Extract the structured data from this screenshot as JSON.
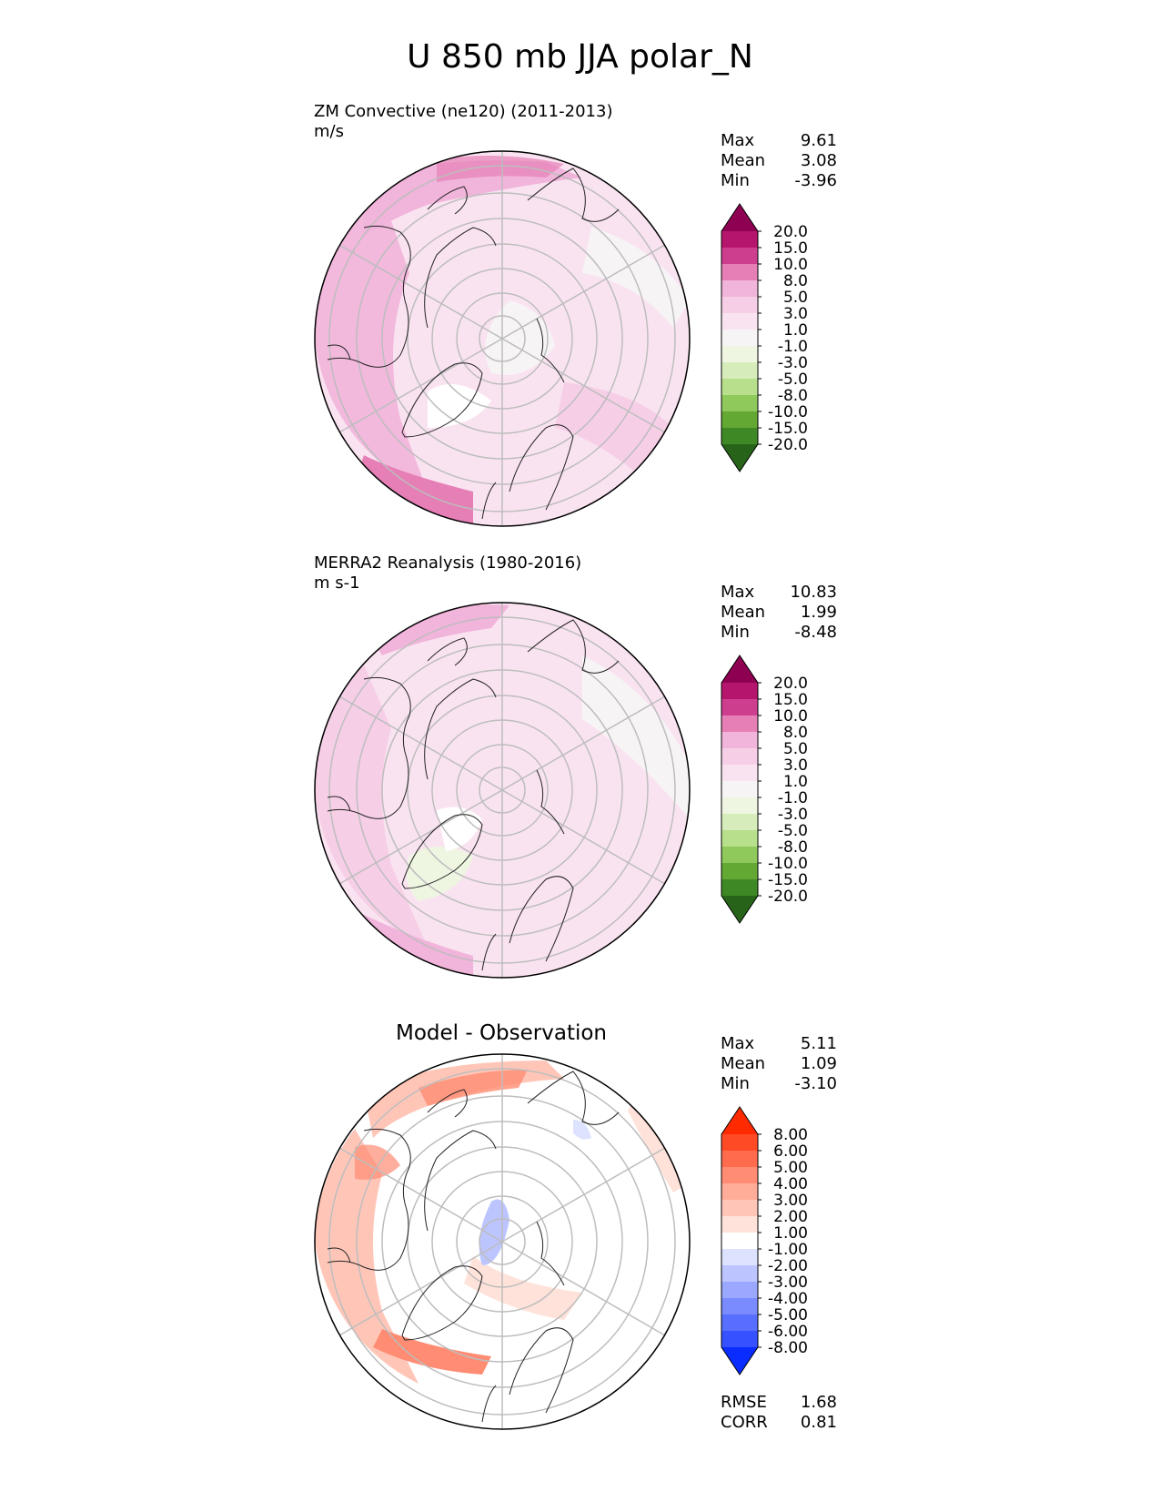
{
  "title": "U 850 mb JJA polar_N",
  "panels": [
    {
      "id": "test",
      "title": "ZM Convective (ne120) (2011-2013)",
      "units": "m/s",
      "stats": [
        {
          "label": "Max",
          "value": "9.61"
        },
        {
          "label": "Mean",
          "value": "3.08"
        },
        {
          "label": "Min",
          "value": "-3.96"
        }
      ],
      "colorbar": {
        "ticks": [
          "20.0",
          "15.0",
          "10.0",
          "8.0",
          "5.0",
          "3.0",
          "1.0",
          "-1.0",
          "-3.0",
          "-5.0",
          "-8.0",
          "-10.0",
          "-15.0",
          "-20.0"
        ],
        "colors": [
          "#8e0152",
          "#b5156d",
          "#ce3e8f",
          "#e57fb6",
          "#f1b4da",
          "#f6cfe7",
          "#fae3f1",
          "#f7f4f6",
          "#eef6e2",
          "#d6edbb",
          "#b8df8c",
          "#8fc85b",
          "#64a834",
          "#3e8826",
          "#276419"
        ]
      }
    },
    {
      "id": "reference",
      "title": "MERRA2 Reanalysis (1980-2016)",
      "units": "m s-1",
      "stats": [
        {
          "label": "Max",
          "value": "10.83"
        },
        {
          "label": "Mean",
          "value": "1.99"
        },
        {
          "label": "Min",
          "value": "-8.48"
        }
      ],
      "colorbar": {
        "ticks": [
          "20.0",
          "15.0",
          "10.0",
          "8.0",
          "5.0",
          "3.0",
          "1.0",
          "-1.0",
          "-3.0",
          "-5.0",
          "-8.0",
          "-10.0",
          "-15.0",
          "-20.0"
        ],
        "colors": [
          "#8e0152",
          "#b5156d",
          "#ce3e8f",
          "#e57fb6",
          "#f1b4da",
          "#f6cfe7",
          "#fae3f1",
          "#f7f4f6",
          "#eef6e2",
          "#d6edbb",
          "#b8df8c",
          "#8fc85b",
          "#64a834",
          "#3e8826",
          "#276419"
        ]
      }
    },
    {
      "id": "diff",
      "title": "Model - Observation",
      "units": "",
      "stats": [
        {
          "label": "Max",
          "value": "5.11"
        },
        {
          "label": "Mean",
          "value": "1.09"
        },
        {
          "label": "Min",
          "value": "-3.10"
        }
      ],
      "extra_stats": [
        {
          "label": "RMSE",
          "value": "1.68"
        },
        {
          "label": "CORR",
          "value": "0.81"
        }
      ],
      "colorbar": {
        "ticks": [
          "8.00",
          "6.00",
          "5.00",
          "4.00",
          "3.00",
          "2.00",
          "1.00",
          "-1.00",
          "-2.00",
          "-3.00",
          "-4.00",
          "-5.00",
          "-6.00",
          "-8.00"
        ],
        "colors": [
          "#ff2a00",
          "#ff4a26",
          "#ff6b4d",
          "#ff8c73",
          "#ffad99",
          "#ffc6b8",
          "#ffe2da",
          "#ffffff",
          "#dde2ff",
          "#bcc5ff",
          "#9aa8ff",
          "#798bff",
          "#576eff",
          "#3651ff",
          "#0a2cff"
        ]
      }
    }
  ]
}
